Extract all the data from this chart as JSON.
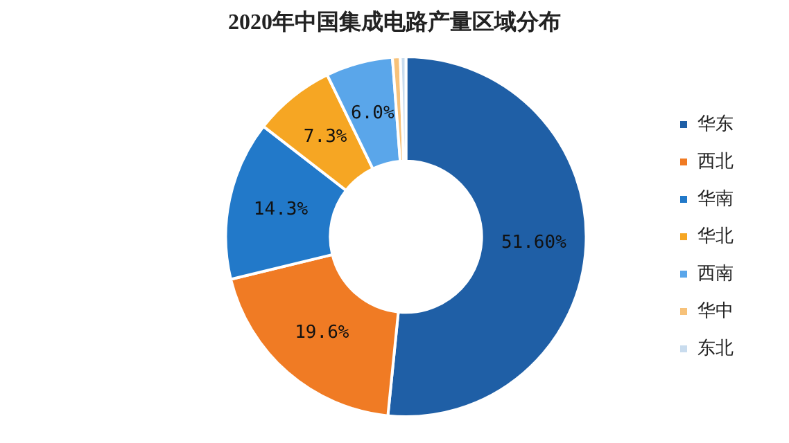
{
  "chart_data": {
    "type": "donut",
    "title": "2020年中国集成电路产量区域分布",
    "categories": [
      "华东",
      "西北",
      "华南",
      "华北",
      "西南",
      "华中",
      "东北"
    ],
    "values": [
      51.6,
      19.6,
      14.3,
      7.3,
      6.0,
      0.7,
      0.5
    ],
    "colors": [
      "#1f5fa6",
      "#f07b24",
      "#2279c9",
      "#f6a623",
      "#5aa6ea",
      "#f7c27a",
      "#c9dcee"
    ],
    "value_labels": [
      "51.60%",
      "19.6%",
      "14.3%",
      "7.3%",
      "6.0%",
      null,
      null
    ],
    "legend": "right"
  }
}
